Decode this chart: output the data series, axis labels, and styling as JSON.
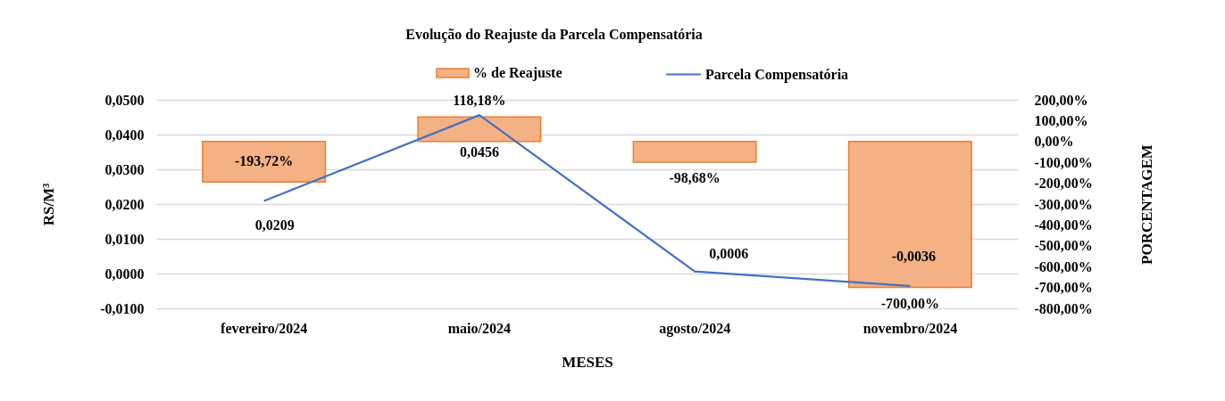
{
  "chart_data": {
    "type": "bar",
    "title": "Evolução do Reajuste da Parcela Compensatória",
    "xlabel": "MESES",
    "ylabel": "RS/M³",
    "y2label": "PORCENTAGEM",
    "categories": [
      "fevereiro/2024",
      "maio/2024",
      "agosto/2024",
      "novembro/2024"
    ],
    "series": [
      {
        "name": "% de Reajuste",
        "axis": "y2",
        "color": "#f4b183",
        "values": [
          -193.72,
          118.18,
          -98.68,
          -700
        ],
        "value_labels": [
          "-193,72%",
          "118,18%",
          "-98,68%",
          "-700,00%"
        ]
      },
      {
        "name": "Parcela Compensatória",
        "type": "line",
        "color": "#4472c4",
        "values": [
          0.0209,
          0.0456,
          0.0006,
          -0.0036
        ],
        "value_labels": [
          "0,0209",
          "0,0456",
          "0,0006",
          "-0,0036"
        ]
      }
    ],
    "ylim": [
      -0.01,
      0.05
    ],
    "yticks": [
      {
        "value": -0.01,
        "label": "-0,0100"
      },
      {
        "value": 0,
        "label": "0,0000"
      },
      {
        "value": 0.01,
        "label": "0,0100"
      },
      {
        "value": 0.02,
        "label": "0,0200"
      },
      {
        "value": 0.03,
        "label": "0,0300"
      },
      {
        "value": 0.04,
        "label": "0,0400"
      },
      {
        "value": 0.05,
        "label": "0,0500"
      }
    ],
    "y2lim": [
      -800,
      200
    ],
    "y2ticks": [
      {
        "value": -800,
        "label": "-800,00%"
      },
      {
        "value": -700,
        "label": "-700,00%"
      },
      {
        "value": -600,
        "label": "-600,00%"
      },
      {
        "value": -500,
        "label": "-500,00%"
      },
      {
        "value": -400,
        "label": "-400,00%"
      },
      {
        "value": -300,
        "label": "-300,00%"
      },
      {
        "value": -200,
        "label": "-200,00%"
      },
      {
        "value": -100,
        "label": "-100,00%"
      },
      {
        "value": 0,
        "label": "0,00%"
      },
      {
        "value": 100,
        "label": "100,00%"
      },
      {
        "value": 200,
        "label": "200,00%"
      }
    ],
    "grid": "y",
    "legend": "top",
    "line_style": "solid"
  }
}
